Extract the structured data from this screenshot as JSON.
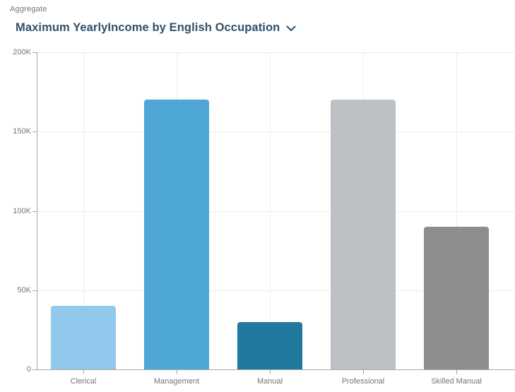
{
  "header": {
    "aggregate_label": "Aggregate",
    "title": "Maximum YearlyIncome by English Occupation",
    "chevron_icon": "chevron-down-icon"
  },
  "colors": {
    "title_text": "#30506a",
    "aggregate_label": "#6e7681",
    "axis_text": "#757575",
    "axis_line": "#a8a8a8",
    "gridline": "#ededed",
    "background": "#ffffff"
  },
  "chart_data": {
    "type": "bar",
    "title": "Maximum YearlyIncome by English Occupation",
    "categories": [
      "Clerical",
      "Management",
      "Manual",
      "Professional",
      "Skilled Manual"
    ],
    "values": [
      40000,
      170000,
      30000,
      170000,
      90000
    ],
    "bar_colors": [
      "#92C8EC",
      "#4DA6D6",
      "#2179A0",
      "#BDC1C6",
      "#8D8D8D"
    ],
    "xlabel": "",
    "ylabel": "",
    "ylim": [
      0,
      200000
    ],
    "yticks": [
      {
        "value": 0,
        "label": "0"
      },
      {
        "value": 50000,
        "label": "50K"
      },
      {
        "value": 100000,
        "label": "100K"
      },
      {
        "value": 150000,
        "label": "150K"
      },
      {
        "value": 200000,
        "label": "200K"
      }
    ],
    "grid": true,
    "legend": false
  }
}
